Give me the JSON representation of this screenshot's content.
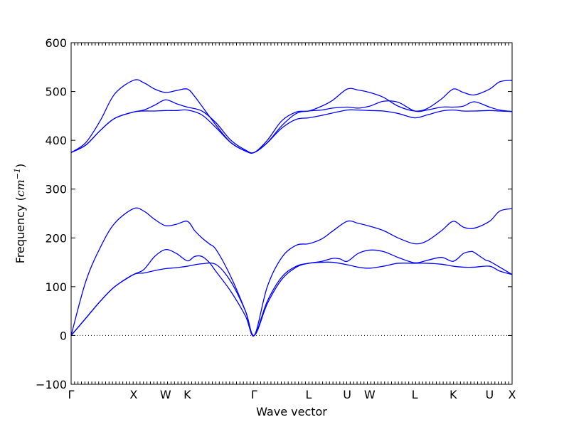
{
  "chart_data": {
    "type": "line",
    "title": "",
    "xlabel": "Wave vector",
    "ylabel_prefix": "Frequency (",
    "ylabel_unit": "cm",
    "ylabel_exp": "−1",
    "ylabel_suffix": ")",
    "ylim": [
      -100,
      600
    ],
    "xlim": [
      0,
      6.07
    ],
    "yticks": [
      -100,
      0,
      100,
      200,
      300,
      400,
      500,
      600
    ],
    "ytick_labels": [
      "−100",
      "0",
      "100",
      "200",
      "300",
      "400",
      "500",
      "600"
    ],
    "high_symmetry_points": [
      {
        "label": "Γ",
        "x": 0.0
      },
      {
        "label": "X",
        "x": 0.86
      },
      {
        "label": "W",
        "x": 1.3
      },
      {
        "label": "K",
        "x": 1.6
      },
      {
        "label": "Γ",
        "x": 2.52
      },
      {
        "label": "L",
        "x": 3.27
      },
      {
        "label": "U",
        "x": 3.8
      },
      {
        "label": "W",
        "x": 4.11
      },
      {
        "label": "L",
        "x": 4.73
      },
      {
        "label": "K",
        "x": 5.26
      },
      {
        "label": "U",
        "x": 5.76
      },
      {
        "label": "X",
        "x": 6.07
      }
    ],
    "reference_line": {
      "y": 0,
      "style": "dotted"
    },
    "series": [
      {
        "color": "#0000ff",
        "x": [
          0.0,
          0.2,
          0.4,
          0.6,
          0.86,
          1.0,
          1.15,
          1.3,
          1.45,
          1.6,
          1.8,
          2.0,
          2.2,
          2.4,
          2.52,
          2.7,
          2.9,
          3.1,
          3.27,
          3.45,
          3.6,
          3.8,
          3.95,
          4.11,
          4.3,
          4.5,
          4.73,
          4.9,
          5.1,
          5.26,
          5.4,
          5.55,
          5.76,
          5.9,
          6.07
        ],
        "y": [
          0,
          35,
          70,
          100,
          125,
          128,
          133,
          137,
          139,
          142,
          147,
          145,
          110,
          50,
          0,
          65,
          115,
          140,
          148,
          150,
          150,
          145,
          140,
          138,
          142,
          148,
          148,
          148,
          146,
          142,
          140,
          140,
          142,
          132,
          125
        ]
      },
      {
        "color": "#0000ff",
        "x": [
          0.0,
          0.2,
          0.4,
          0.6,
          0.86,
          1.0,
          1.15,
          1.3,
          1.45,
          1.6,
          1.7,
          1.8,
          1.9,
          2.0,
          2.2,
          2.4,
          2.52,
          2.7,
          2.9,
          3.1,
          3.27,
          3.45,
          3.6,
          3.7,
          3.8,
          3.95,
          4.11,
          4.3,
          4.5,
          4.73,
          4.9,
          5.1,
          5.26,
          5.4,
          5.5,
          5.55,
          5.7,
          5.76,
          5.9,
          6.07
        ],
        "y": [
          0,
          35,
          70,
          100,
          125,
          135,
          162,
          176,
          168,
          153,
          162,
          162,
          150,
          130,
          90,
          40,
          0,
          70,
          120,
          142,
          148,
          152,
          158,
          157,
          152,
          168,
          175,
          172,
          160,
          149,
          154,
          160,
          152,
          168,
          172,
          170,
          155,
          152,
          140,
          125
        ]
      },
      {
        "color": "#0000ff",
        "x": [
          0.0,
          0.2,
          0.4,
          0.6,
          0.86,
          1.0,
          1.15,
          1.3,
          1.45,
          1.6,
          1.7,
          1.8,
          1.9,
          2.0,
          2.2,
          2.4,
          2.52,
          2.7,
          2.9,
          3.1,
          3.27,
          3.45,
          3.6,
          3.8,
          3.95,
          4.11,
          4.3,
          4.5,
          4.73,
          4.9,
          5.1,
          5.26,
          5.4,
          5.55,
          5.76,
          5.9,
          6.07
        ],
        "y": [
          0,
          110,
          180,
          230,
          260,
          255,
          238,
          225,
          228,
          234,
          215,
          200,
          188,
          175,
          120,
          50,
          0,
          100,
          160,
          185,
          188,
          198,
          214,
          234,
          230,
          224,
          215,
          200,
          188,
          194,
          215,
          234,
          222,
          220,
          234,
          255,
          260
        ]
      },
      {
        "color": "#0000ff",
        "x": [
          0.0,
          0.2,
          0.4,
          0.6,
          0.86,
          1.0,
          1.15,
          1.3,
          1.45,
          1.6,
          1.8,
          2.0,
          2.2,
          2.4,
          2.52,
          2.7,
          2.9,
          3.1,
          3.27,
          3.45,
          3.6,
          3.8,
          3.95,
          4.11,
          4.3,
          4.5,
          4.73,
          4.9,
          5.1,
          5.26,
          5.4,
          5.55,
          5.76,
          5.9,
          6.07
        ],
        "y": [
          375,
          390,
          420,
          445,
          458,
          460,
          460,
          461,
          461,
          462,
          452,
          425,
          395,
          378,
          375,
          395,
          425,
          443,
          446,
          451,
          456,
          462,
          462,
          461,
          460,
          455,
          446,
          452,
          460,
          462,
          460,
          460,
          461,
          460,
          459
        ]
      },
      {
        "color": "#0000ff",
        "x": [
          0.0,
          0.2,
          0.4,
          0.6,
          0.86,
          1.0,
          1.15,
          1.3,
          1.45,
          1.6,
          1.8,
          2.0,
          2.2,
          2.4,
          2.52,
          2.7,
          2.9,
          3.1,
          3.27,
          3.45,
          3.6,
          3.8,
          3.95,
          4.11,
          4.3,
          4.5,
          4.73,
          4.9,
          5.1,
          5.26,
          5.4,
          5.55,
          5.76,
          5.9,
          6.07
        ],
        "y": [
          375,
          390,
          420,
          445,
          458,
          462,
          472,
          483,
          475,
          468,
          460,
          435,
          400,
          380,
          375,
          395,
          430,
          455,
          460,
          462,
          466,
          468,
          466,
          470,
          480,
          478,
          460,
          462,
          468,
          468,
          470,
          479,
          468,
          462,
          459
        ]
      },
      {
        "color": "#0000ff",
        "x": [
          0.0,
          0.2,
          0.4,
          0.6,
          0.86,
          1.0,
          1.15,
          1.3,
          1.45,
          1.6,
          1.7,
          1.8,
          2.0,
          2.2,
          2.4,
          2.52,
          2.7,
          2.9,
          3.1,
          3.27,
          3.45,
          3.6,
          3.8,
          3.95,
          4.11,
          4.3,
          4.5,
          4.73,
          4.9,
          5.1,
          5.26,
          5.4,
          5.55,
          5.76,
          5.9,
          6.07
        ],
        "y": [
          375,
          395,
          440,
          495,
          523,
          518,
          505,
          498,
          502,
          505,
          490,
          470,
          430,
          395,
          378,
          375,
          400,
          440,
          458,
          460,
          470,
          482,
          505,
          503,
          498,
          488,
          470,
          460,
          465,
          485,
          505,
          498,
          493,
          505,
          520,
          523
        ]
      }
    ]
  }
}
